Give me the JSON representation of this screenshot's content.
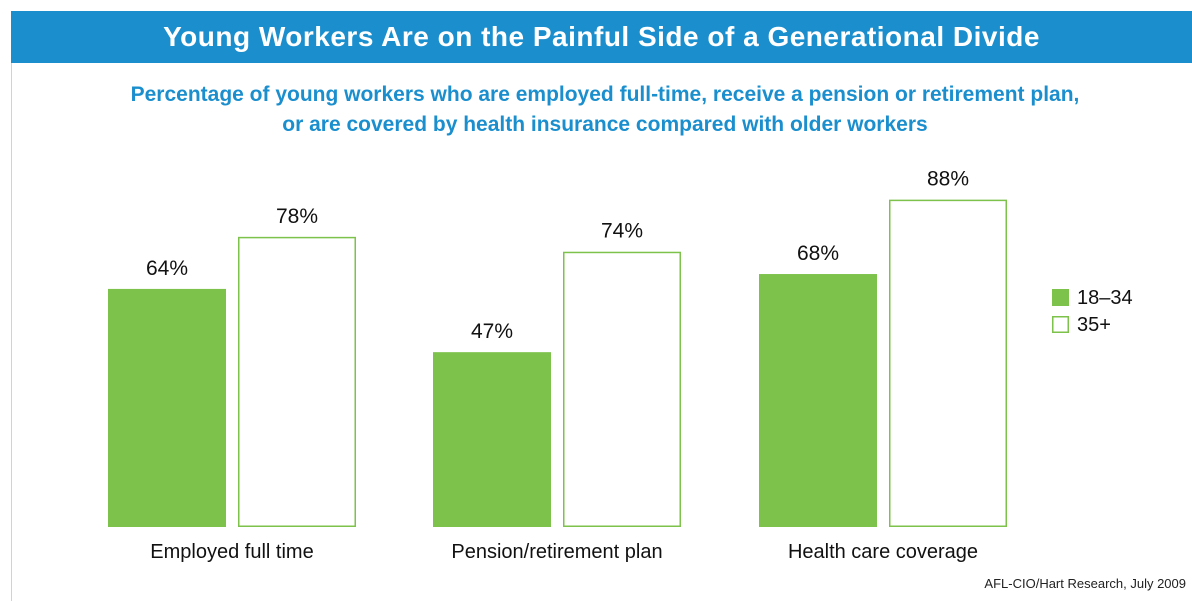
{
  "banner_title": "Young Workers Are on the Painful Side of a Generational Divide",
  "subtitle_lines": [
    "Percentage of young workers who are employed full-time, receive a pension or retirement plan,",
    "or are covered by health insurance compared with older workers"
  ],
  "source": "AFL-CIO/Hart Research, July 2009",
  "colors": {
    "banner": "#1b8fce",
    "subtitle": "#1b8fce",
    "young": "#7dc24b",
    "older_outline": "#7dc24b"
  },
  "chart_data": {
    "type": "bar",
    "title": "Young Workers Are on the Painful Side of a Generational Divide",
    "categories": [
      "Employed full time",
      "Pension/retirement plan",
      "Health care coverage"
    ],
    "series": [
      {
        "name": "18–34",
        "values": [
          64,
          47,
          68
        ],
        "labels": [
          "64%",
          "47%",
          "68%"
        ],
        "style": "filled"
      },
      {
        "name": "35+",
        "values": [
          78,
          74,
          88
        ],
        "labels": [
          "78%",
          "74%",
          "88%"
        ],
        "style": "outline"
      }
    ],
    "ylim": [
      0,
      100
    ],
    "grid": false,
    "legend": "right"
  }
}
